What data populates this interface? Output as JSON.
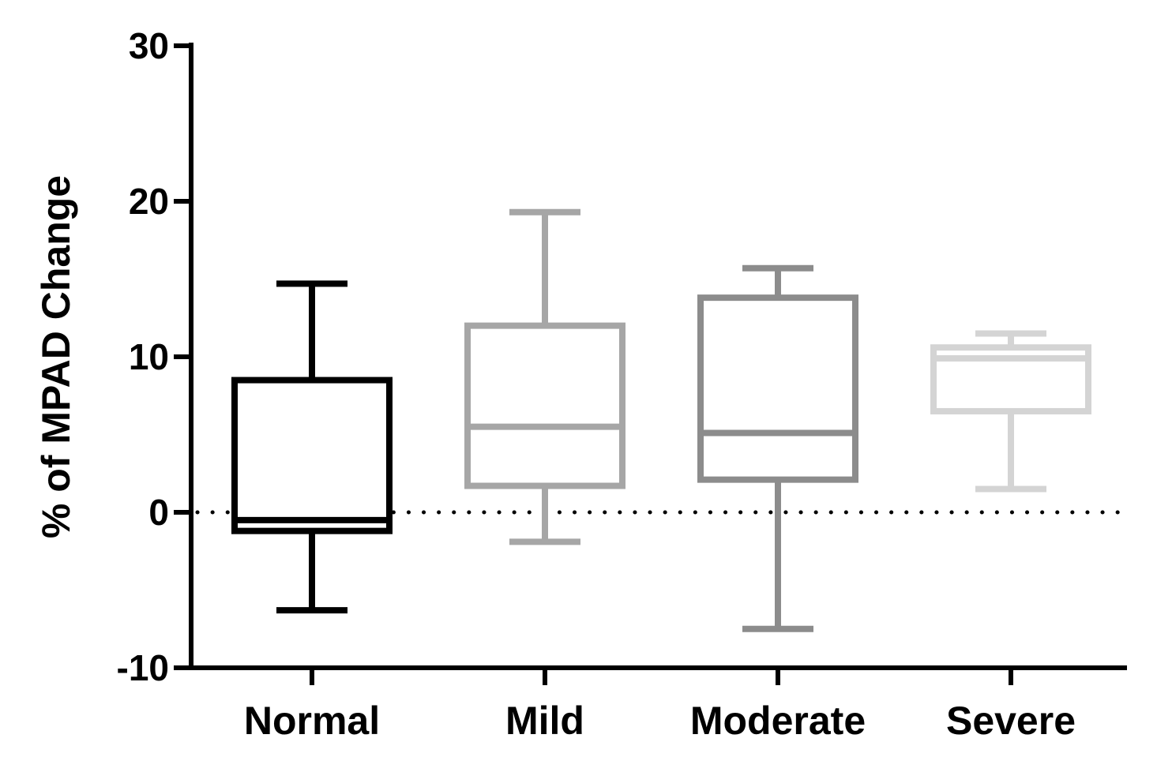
{
  "chart_data": {
    "type": "box",
    "title": "",
    "xlabel": "",
    "ylabel": "% of MPAD Change",
    "ylim": [
      -10,
      30
    ],
    "yticks": [
      -10,
      0,
      10,
      20,
      30
    ],
    "ytick_labels": [
      "-10",
      "0",
      "10",
      "20",
      "30"
    ],
    "reference_line": {
      "y": 0,
      "style": "dotted"
    },
    "categories": [
      "Normal",
      "Mild",
      "Moderate",
      "Severe"
    ],
    "series": [
      {
        "name": "Normal",
        "whisker_low": -6.3,
        "q1": -1.2,
        "median": -0.5,
        "q3": 8.5,
        "whisker_high": 14.7,
        "color": "#000000"
      },
      {
        "name": "Mild",
        "whisker_low": -1.9,
        "q1": 1.7,
        "median": 5.5,
        "q3": 12.0,
        "whisker_high": 19.3,
        "color": "#a6a6a6"
      },
      {
        "name": "Moderate",
        "whisker_low": -7.5,
        "q1": 2.1,
        "median": 5.1,
        "q3": 13.8,
        "whisker_high": 15.7,
        "color": "#8c8c8c"
      },
      {
        "name": "Severe",
        "whisker_low": 1.5,
        "q1": 6.5,
        "median": 9.9,
        "q3": 10.6,
        "whisker_high": 11.5,
        "color": "#d4d4d4"
      }
    ]
  }
}
